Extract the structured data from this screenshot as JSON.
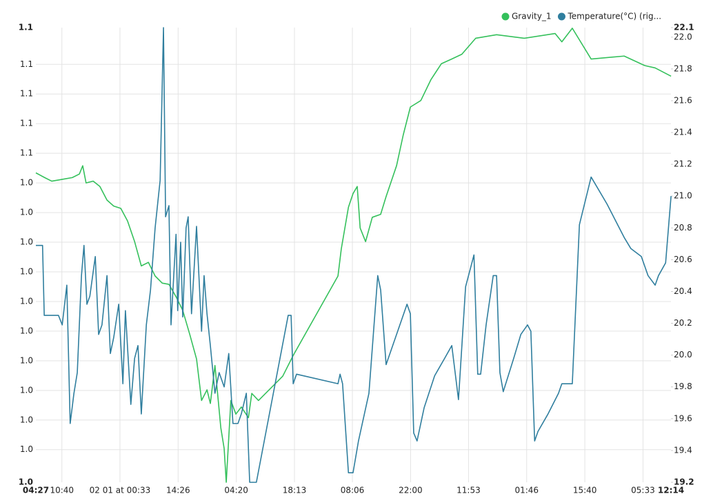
{
  "chart_data": {
    "type": "line",
    "grid": true,
    "legend": "top-right",
    "xlim": [
      0,
      151.78
    ],
    "xticks": [
      {
        "value": 0,
        "label": "04:27"
      },
      {
        "value": 6.22,
        "label": "10:40"
      },
      {
        "value": 20.1,
        "label": "02 01 at 00:33"
      },
      {
        "value": 34.0,
        "label": "14:26"
      },
      {
        "value": 47.9,
        "label": "04:20"
      },
      {
        "value": 61.8,
        "label": "18:13"
      },
      {
        "value": 75.65,
        "label": "08:06"
      },
      {
        "value": 89.55,
        "label": "22:00"
      },
      {
        "value": 103.4,
        "label": "11:53"
      },
      {
        "value": 117.3,
        "label": "01:46"
      },
      {
        "value": 131.2,
        "label": "15:40"
      },
      {
        "value": 145.1,
        "label": "05:33"
      },
      {
        "value": 151.78,
        "label": "12:14"
      }
    ],
    "ylim": [
      0.9985,
      1.0752
    ],
    "yticks": [
      {
        "value": 0.9985,
        "label": "1.0"
      },
      {
        "value": 1.004,
        "label": "1.0"
      },
      {
        "value": 1.009,
        "label": "1.0"
      },
      {
        "value": 1.014,
        "label": "1.0"
      },
      {
        "value": 1.019,
        "label": "1.0"
      },
      {
        "value": 1.024,
        "label": "1.0"
      },
      {
        "value": 1.029,
        "label": "1.0"
      },
      {
        "value": 1.034,
        "label": "1.0"
      },
      {
        "value": 1.039,
        "label": "1.0"
      },
      {
        "value": 1.044,
        "label": "1.0"
      },
      {
        "value": 1.049,
        "label": "1.0"
      },
      {
        "value": 1.054,
        "label": "1.1"
      },
      {
        "value": 1.059,
        "label": "1.1"
      },
      {
        "value": 1.064,
        "label": "1.1"
      },
      {
        "value": 1.069,
        "label": "1.1"
      },
      {
        "value": 1.0752,
        "label": "1.1"
      }
    ],
    "y2lim": [
      19.2,
      22.06
    ],
    "y2ticks": [
      19.2,
      19.4,
      19.6,
      19.8,
      {
        "value": 20,
        "label": "20.0"
      },
      20.2,
      20.4,
      20.6,
      20.8,
      {
        "value": 21,
        "label": "21.0"
      },
      21.2,
      21.4,
      21.6,
      21.8,
      {
        "value": 22,
        "label": "22.0"
      },
      {
        "value": 22.06,
        "label": "22.1"
      }
    ],
    "series": [
      {
        "name": "Gravity_1",
        "color": "#34c05b",
        "axis": "y",
        "x": [
          0,
          2.1,
          3.8,
          6.3,
          8.7,
          10.4,
          11.2,
          12.0,
          13.7,
          15.3,
          17.0,
          18.6,
          20.3,
          21.9,
          23.6,
          25.2,
          26.9,
          28.5,
          30.2,
          31.8,
          33.5,
          35.1,
          36.8,
          38.4,
          39.6,
          40.9,
          41.7,
          42.8,
          44.2,
          45.0,
          45.5,
          46.6,
          47.8,
          49.1,
          50.8,
          51.6,
          53.2,
          59.0,
          61.5,
          72.2,
          73.0,
          74.7,
          75.8,
          76.8,
          77.5,
          78.8,
          80.4,
          82.4,
          83.7,
          86.2,
          87.8,
          89.5,
          92.0,
          94.4,
          96.9,
          99.4,
          101.8,
          105.1,
          110.1,
          116.7,
          124.1,
          125.7,
          128.2,
          132.7,
          140.6,
          145.5,
          148.0,
          151.8
        ],
        "values": [
          1.0507,
          1.0499,
          1.0493,
          1.0496,
          1.0499,
          1.0505,
          1.0519,
          1.049,
          1.0493,
          1.0484,
          1.0461,
          1.0451,
          1.0447,
          1.0426,
          1.0391,
          1.035,
          1.0356,
          1.0333,
          1.0321,
          1.0319,
          1.0298,
          1.0275,
          1.0234,
          1.0193,
          1.0123,
          1.0141,
          1.0118,
          1.0182,
          1.0077,
          1.0042,
          0.9985,
          1.0123,
          1.01,
          1.0112,
          1.0094,
          1.0135,
          1.0123,
          1.0164,
          1.0199,
          1.0333,
          1.0379,
          1.0449,
          1.0472,
          1.0484,
          1.0414,
          1.0391,
          1.0432,
          1.0437,
          1.0467,
          1.0519,
          1.0571,
          1.0618,
          1.0629,
          1.0664,
          1.0691,
          1.0699,
          1.0707,
          1.0734,
          1.074,
          1.0734,
          1.0742,
          1.0728,
          1.0751,
          1.0699,
          1.0704,
          1.0688,
          1.0684,
          1.067
        ]
      },
      {
        "name": "Temperature(°C) (rig...",
        "color": "#2f7e9e",
        "axis": "y2",
        "x": [
          0,
          1.6,
          2.0,
          5.4,
          6.3,
          7.4,
          8.2,
          9.1,
          9.9,
          10.9,
          11.5,
          12.2,
          12.9,
          14.2,
          15.0,
          15.8,
          17.0,
          17.8,
          18.6,
          19.8,
          20.8,
          21.4,
          22.7,
          23.6,
          24.4,
          25.2,
          26.4,
          27.4,
          28.5,
          29.7,
          30.5,
          31.0,
          31.8,
          32.3,
          33.5,
          33.9,
          34.6,
          35.1,
          35.9,
          36.4,
          37.2,
          38.4,
          39.6,
          40.2,
          40.9,
          41.7,
          42.8,
          43.8,
          45.0,
          46.1,
          47.1,
          48.3,
          49.1,
          50.3,
          51.1,
          52.7,
          60.3,
          61.0,
          61.5,
          62.3,
          72.2,
          72.7,
          73.3,
          74.7,
          75.8,
          77.1,
          79.6,
          81.7,
          82.4,
          83.7,
          86.2,
          88.7,
          89.5,
          90.3,
          91.1,
          92.8,
          95.3,
          97.7,
          99.4,
          101.0,
          102.7,
          104.7,
          105.6,
          106.3,
          107.6,
          109.3,
          110.1,
          110.9,
          111.7,
          114.2,
          115.9,
          117.5,
          118.3,
          119.2,
          120.0,
          122.4,
          124.9,
          125.7,
          128.2,
          129.9,
          132.7,
          136.5,
          140.6,
          142.2,
          144.7,
          146.3,
          148.0,
          148.8,
          150.5,
          151.8
        ],
        "values": [
          20.69,
          20.69,
          20.25,
          20.25,
          20.19,
          20.44,
          19.57,
          19.76,
          19.89,
          20.5,
          20.69,
          20.32,
          20.37,
          20.62,
          20.13,
          20.19,
          20.5,
          20.01,
          20.11,
          20.32,
          19.82,
          20.28,
          19.69,
          19.98,
          20.06,
          19.63,
          20.19,
          20.41,
          20.8,
          21.1,
          22.06,
          20.87,
          20.94,
          20.19,
          20.76,
          20.28,
          20.71,
          20.24,
          20.8,
          20.87,
          20.26,
          20.81,
          20.15,
          20.5,
          20.26,
          20.06,
          19.76,
          19.89,
          19.8,
          20.01,
          19.57,
          19.57,
          19.63,
          19.76,
          19.2,
          19.2,
          20.25,
          20.25,
          19.82,
          19.88,
          19.82,
          19.88,
          19.82,
          19.26,
          19.26,
          19.46,
          19.76,
          20.5,
          20.41,
          19.94,
          20.13,
          20.32,
          20.26,
          19.51,
          19.46,
          19.67,
          19.87,
          19.98,
          20.06,
          19.72,
          20.43,
          20.63,
          19.88,
          19.88,
          20.19,
          20.5,
          20.5,
          19.89,
          19.77,
          19.98,
          20.13,
          20.19,
          20.15,
          19.46,
          19.52,
          19.63,
          19.76,
          19.82,
          19.82,
          20.82,
          21.12,
          20.95,
          20.74,
          20.67,
          20.62,
          20.5,
          20.44,
          20.5,
          20.58,
          21.0
        ]
      }
    ]
  }
}
